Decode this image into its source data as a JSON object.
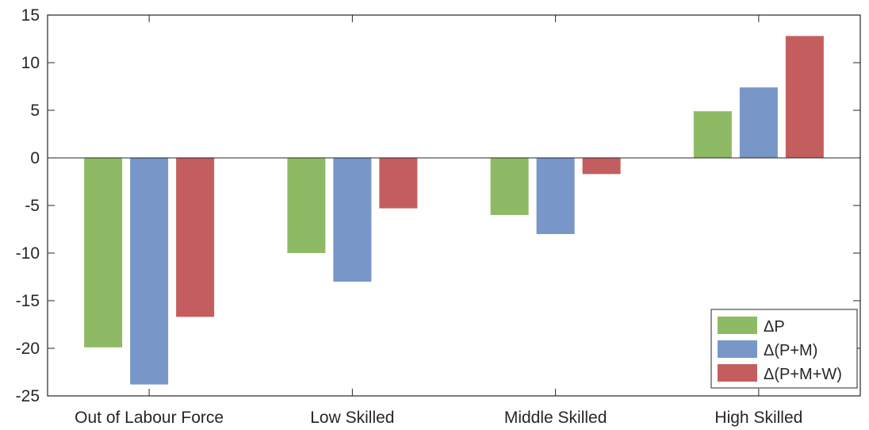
{
  "chart_data": {
    "type": "bar",
    "title": "",
    "xlabel": "",
    "ylabel": "",
    "categories": [
      "Out of Labour Force",
      "Low Skilled",
      "Middle Skilled",
      "High Skilled"
    ],
    "series": [
      {
        "name": "ΔP",
        "color": "#8fba65",
        "values": [
          -19.9,
          -10.0,
          -6.0,
          4.9
        ]
      },
      {
        "name": "Δ(P+M)",
        "color": "#7896c8",
        "values": [
          -23.8,
          -13.0,
          -8.0,
          7.4
        ]
      },
      {
        "name": "Δ(P+M+W)",
        "color": "#c45e5e",
        "values": [
          -16.7,
          -5.3,
          -1.7,
          12.8
        ]
      }
    ],
    "ylim": [
      -25,
      15
    ],
    "yticks": [
      "15",
      "10",
      "5",
      "0",
      "-5",
      "-10",
      "-15",
      "-20",
      "-25"
    ],
    "grid": false,
    "legend_position": "bottom-right"
  }
}
